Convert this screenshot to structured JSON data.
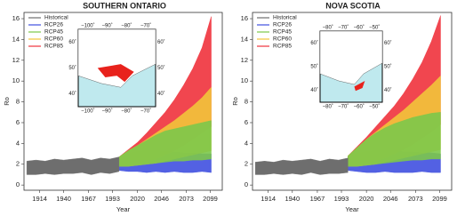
{
  "chart_data": [
    {
      "type": "band",
      "title": "SOUTHERN ONTARIO",
      "x_label": "Year",
      "y_label": "Ro",
      "x": [
        1900,
        1910,
        1920,
        1930,
        1940,
        1950,
        1960,
        1970,
        1980,
        1990,
        2000,
        2010,
        2020,
        2030,
        2040,
        2050,
        2060,
        2070,
        2080,
        2090,
        2100
      ],
      "xlim": [
        1897,
        2112
      ],
      "xticks": [
        1914,
        1940,
        1967,
        1993,
        2020,
        2046,
        2073,
        2099
      ],
      "ylim": [
        -0.5,
        16.6
      ],
      "yticks": [
        0,
        2,
        4,
        6,
        8,
        10,
        12,
        14,
        16
      ],
      "legend": "upper-left",
      "series": [
        {
          "name": "Historical",
          "color": "#6e6e6e",
          "values": [
            2.3,
            2.4,
            2.3,
            2.5,
            2.4,
            2.5,
            2.6,
            2.4,
            2.6,
            2.5,
            2.7,
            null,
            null,
            null,
            null,
            null,
            null,
            null,
            null,
            null,
            null
          ],
          "lower": [
            1.0,
            1.0,
            1.1,
            1.0,
            1.1,
            1.1,
            1.2,
            1.0,
            1.2,
            1.1,
            1.3,
            null,
            null,
            null,
            null,
            null,
            null,
            null,
            null,
            null,
            null
          ]
        },
        {
          "name": "RCP26",
          "color": "#4050e0",
          "values": [
            null,
            null,
            null,
            null,
            null,
            null,
            null,
            null,
            null,
            null,
            2.7,
            3.0,
            3.2,
            3.3,
            3.3,
            3.2,
            3.2,
            3.1,
            3.1,
            3.0,
            3.0
          ],
          "lower": [
            null,
            null,
            null,
            null,
            null,
            null,
            null,
            null,
            null,
            null,
            1.4,
            1.3,
            1.3,
            1.2,
            1.3,
            1.2,
            1.3,
            1.2,
            1.2,
            1.3,
            1.2
          ]
        },
        {
          "name": "RCP45",
          "color": "#7cc84a",
          "values": [
            null,
            null,
            null,
            null,
            null,
            null,
            null,
            null,
            null,
            null,
            2.7,
            3.3,
            3.8,
            4.3,
            4.8,
            5.2,
            5.4,
            5.6,
            5.8,
            6.0,
            6.2
          ],
          "lower": [
            null,
            null,
            null,
            null,
            null,
            null,
            null,
            null,
            null,
            null,
            1.8,
            1.8,
            1.9,
            2.0,
            2.1,
            2.2,
            2.3,
            2.3,
            2.4,
            2.4,
            2.5
          ]
        },
        {
          "name": "RCP60",
          "color": "#f2c43a",
          "values": [
            null,
            null,
            null,
            null,
            null,
            null,
            null,
            null,
            null,
            null,
            2.7,
            3.3,
            3.8,
            4.4,
            5.0,
            5.6,
            6.2,
            6.9,
            7.6,
            8.4,
            9.4
          ],
          "lower": [
            null,
            null,
            null,
            null,
            null,
            null,
            null,
            null,
            null,
            null,
            1.8,
            1.8,
            1.9,
            2.0,
            2.1,
            2.3,
            2.5,
            2.7,
            2.9,
            3.1,
            3.3
          ]
        },
        {
          "name": "RCP85",
          "color": "#f0323c",
          "values": [
            null,
            null,
            null,
            null,
            null,
            null,
            null,
            null,
            null,
            null,
            2.7,
            3.4,
            4.1,
            5.0,
            6.0,
            7.0,
            8.2,
            9.6,
            11.2,
            13.2,
            16.2
          ],
          "lower": [
            null,
            null,
            null,
            null,
            null,
            null,
            null,
            null,
            null,
            null,
            1.8,
            1.9,
            2.0,
            2.2,
            2.5,
            2.9,
            3.3,
            3.8,
            4.4,
            5.0,
            5.6
          ]
        }
      ],
      "inset": {
        "x_labels": [
          "−100˚",
          "−90˚",
          "−80˚",
          "−70˚"
        ],
        "y_labels": [
          "60˚",
          "50˚",
          "40˚"
        ]
      }
    },
    {
      "type": "band",
      "title": "NOVA SCOTIA",
      "x_label": "Year",
      "y_label": "Ro",
      "x": [
        1900,
        1910,
        1920,
        1930,
        1940,
        1950,
        1960,
        1970,
        1980,
        1990,
        2000,
        2010,
        2020,
        2030,
        2040,
        2050,
        2060,
        2070,
        2080,
        2090,
        2100
      ],
      "xlim": [
        1897,
        2112
      ],
      "xticks": [
        1914,
        1940,
        1967,
        1993,
        2020,
        2046,
        2073,
        2099
      ],
      "ylim": [
        -0.5,
        16.6
      ],
      "yticks": [
        0,
        2,
        4,
        6,
        8,
        10,
        12,
        14,
        16
      ],
      "legend": "upper-left",
      "series": [
        {
          "name": "Historical",
          "color": "#6e6e6e",
          "values": [
            2.2,
            2.3,
            2.2,
            2.4,
            2.3,
            2.4,
            2.5,
            2.3,
            2.5,
            2.4,
            2.6,
            null,
            null,
            null,
            null,
            null,
            null,
            null,
            null,
            null,
            null
          ],
          "lower": [
            1.0,
            1.0,
            1.1,
            1.0,
            1.1,
            1.0,
            1.2,
            1.0,
            1.1,
            1.1,
            1.2,
            null,
            null,
            null,
            null,
            null,
            null,
            null,
            null,
            null,
            null
          ]
        },
        {
          "name": "RCP26",
          "color": "#4050e0",
          "values": [
            null,
            null,
            null,
            null,
            null,
            null,
            null,
            null,
            null,
            null,
            2.7,
            3.0,
            3.2,
            3.3,
            3.3,
            3.3,
            3.2,
            3.2,
            3.1,
            3.1,
            3.0
          ],
          "lower": [
            null,
            null,
            null,
            null,
            null,
            null,
            null,
            null,
            null,
            null,
            1.4,
            1.3,
            1.2,
            1.2,
            1.3,
            1.2,
            1.2,
            1.2,
            1.3,
            1.2,
            1.2
          ]
        },
        {
          "name": "RCP45",
          "color": "#7cc84a",
          "values": [
            null,
            null,
            null,
            null,
            null,
            null,
            null,
            null,
            null,
            null,
            2.8,
            3.6,
            4.4,
            5.0,
            5.5,
            5.9,
            6.2,
            6.5,
            6.7,
            6.9,
            7.0
          ],
          "lower": [
            null,
            null,
            null,
            null,
            null,
            null,
            null,
            null,
            null,
            null,
            1.8,
            1.8,
            1.9,
            2.0,
            2.1,
            2.2,
            2.3,
            2.4,
            2.4,
            2.5,
            2.5
          ]
        },
        {
          "name": "RCP60",
          "color": "#f2c43a",
          "values": [
            null,
            null,
            null,
            null,
            null,
            null,
            null,
            null,
            null,
            null,
            2.8,
            3.6,
            4.4,
            5.1,
            5.8,
            6.5,
            7.2,
            8.0,
            8.8,
            9.6,
            10.5
          ],
          "lower": [
            null,
            null,
            null,
            null,
            null,
            null,
            null,
            null,
            null,
            null,
            1.8,
            1.8,
            1.9,
            2.0,
            2.2,
            2.4,
            2.6,
            2.8,
            3.0,
            3.2,
            3.4
          ]
        },
        {
          "name": "RCP85",
          "color": "#f0323c",
          "values": [
            null,
            null,
            null,
            null,
            null,
            null,
            null,
            null,
            null,
            null,
            2.8,
            3.7,
            4.6,
            5.6,
            6.6,
            7.6,
            8.8,
            10.2,
            11.8,
            13.8,
            16.3
          ],
          "lower": [
            null,
            null,
            null,
            null,
            null,
            null,
            null,
            null,
            null,
            null,
            1.8,
            1.9,
            2.0,
            2.3,
            2.6,
            3.0,
            3.4,
            3.9,
            4.5,
            5.1,
            5.8
          ]
        }
      ],
      "inset": {
        "x_labels": [
          "−80˚",
          "−70˚",
          "−60˚",
          "−50˚"
        ],
        "y_labels": [
          "60˚",
          "50˚",
          "40˚"
        ]
      }
    }
  ]
}
